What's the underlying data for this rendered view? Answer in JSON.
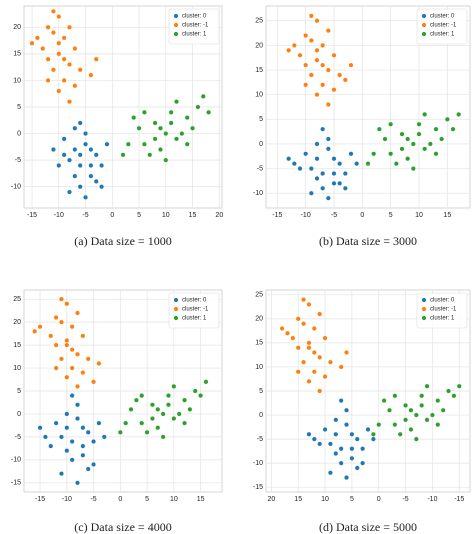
{
  "chart_data": [
    {
      "type": "scatter",
      "title": "(a) Data size = 1000",
      "legend": "upper right",
      "grid": true,
      "xlim": [
        -16.5,
        20.5
      ],
      "xticks": [
        -15,
        -10,
        -5,
        0,
        5,
        10,
        15,
        20
      ],
      "ylim": [
        -14,
        24
      ],
      "yticks": [
        -10,
        -5,
        0,
        5,
        10,
        15,
        20
      ],
      "series": [
        {
          "name": "cluster: 0",
          "color": "#1f77b4",
          "x": [
            -7,
            -6,
            -5,
            -8,
            -4,
            -3,
            -9,
            -6,
            -5,
            -2,
            -10,
            -7,
            -4,
            -3,
            -8,
            -5,
            -6,
            -1,
            -9,
            -7,
            -2,
            -11,
            -4,
            -6
          ],
          "y": [
            -3,
            -6,
            -2,
            -5,
            -8,
            -4,
            -1,
            -10,
            0,
            -6,
            -6,
            -8,
            -3,
            -9,
            -11,
            -12,
            2,
            -2,
            -4,
            1,
            -10,
            -3,
            -6,
            -4
          ]
        },
        {
          "name": "cluster: -1",
          "color": "#ff7f0e",
          "x": [
            -10,
            -9,
            -11,
            -8,
            -12,
            -10,
            -9,
            -7,
            -13,
            -11,
            -8,
            -10,
            -6,
            -12,
            -9,
            -14,
            -7,
            -11,
            -4,
            -15,
            -10,
            -8,
            -3,
            -12
          ],
          "y": [
            15,
            18,
            12,
            13,
            20,
            22,
            10,
            16,
            16,
            19,
            20,
            8,
            12,
            14,
            14,
            18,
            9,
            23,
            11,
            17,
            17,
            6,
            14,
            10
          ]
        },
        {
          "name": "cluster: 1",
          "color": "#2ca02c",
          "x": [
            10,
            8,
            12,
            6,
            14,
            9,
            11,
            5,
            16,
            13,
            7,
            3,
            15,
            10,
            17,
            4,
            12,
            8,
            18,
            2,
            11,
            6,
            14,
            9
          ],
          "y": [
            0,
            2,
            -1,
            -2,
            3,
            -3,
            4,
            1,
            5,
            0,
            -4,
            -2,
            1,
            -5,
            7,
            3,
            6,
            -1,
            4,
            -4,
            2,
            4,
            -2,
            1
          ]
        }
      ]
    },
    {
      "type": "scatter",
      "title": "(b) Data size = 3000",
      "legend": "upper right",
      "grid": true,
      "xlim": [
        -17,
        19
      ],
      "xticks": [
        -15,
        -10,
        -5,
        0,
        5,
        10,
        15
      ],
      "ylim": [
        -13,
        28
      ],
      "yticks": [
        -10,
        -5,
        0,
        5,
        10,
        15,
        20,
        25
      ],
      "series": [
        {
          "name": "cluster: 0",
          "color": "#1f77b4",
          "x": [
            -8,
            -7,
            -6,
            -9,
            -5,
            -4,
            -10,
            -7,
            -6,
            -3,
            -11,
            -8,
            -5,
            -4,
            -9,
            -6,
            -7,
            -2,
            -12,
            -8,
            -3,
            -13,
            -5,
            -1
          ],
          "y": [
            -3,
            -6,
            -1,
            -5,
            -8,
            -4,
            -2,
            -9,
            1,
            -6,
            -5,
            -7,
            -3,
            -8,
            -10,
            -11,
            3,
            -2,
            -4,
            0,
            -9,
            -3,
            -6,
            -4
          ]
        },
        {
          "name": "cluster: -1",
          "color": "#ff7f0e",
          "x": [
            -8,
            -7,
            -9,
            -6,
            -10,
            -8,
            -7,
            -5,
            -11,
            -9,
            -6,
            -8,
            -4,
            -10,
            -7,
            -12,
            -5,
            -9,
            -3,
            -13,
            -8,
            -6,
            -2,
            -10
          ],
          "y": [
            17,
            20,
            14,
            15,
            22,
            25,
            12,
            18,
            18,
            21,
            23,
            10,
            14,
            16,
            16,
            20,
            11,
            26,
            13,
            19,
            19,
            8,
            16,
            12
          ]
        },
        {
          "name": "cluster: 1",
          "color": "#2ca02c",
          "x": [
            9,
            7,
            11,
            5,
            13,
            8,
            10,
            4,
            15,
            12,
            6,
            2,
            14,
            9,
            17,
            3,
            11,
            7,
            16,
            1,
            10,
            5,
            13,
            8
          ],
          "y": [
            0,
            2,
            -1,
            -2,
            3,
            -3,
            4,
            1,
            5,
            0,
            -4,
            -2,
            1,
            -5,
            6,
            3,
            6,
            -1,
            3,
            -4,
            2,
            4,
            -2,
            1
          ]
        }
      ]
    },
    {
      "type": "scatter",
      "title": "(c) Data size = 4000",
      "legend": "upper right",
      "grid": true,
      "xlim": [
        -18,
        19
      ],
      "xticks": [
        -15,
        -10,
        -5,
        0,
        5,
        10,
        15
      ],
      "ylim": [
        -17,
        27
      ],
      "yticks": [
        -15,
        -10,
        -5,
        0,
        5,
        10,
        15,
        20,
        25
      ],
      "series": [
        {
          "name": "cluster: 0",
          "color": "#1f77b4",
          "x": [
            -10,
            -9,
            -8,
            -11,
            -7,
            -6,
            -12,
            -9,
            -8,
            -5,
            -13,
            -10,
            -7,
            -6,
            -11,
            -8,
            -9,
            -4,
            -14,
            -10,
            -5,
            -15,
            -7,
            -3
          ],
          "y": [
            -3,
            -6,
            -1,
            -5,
            -9,
            -4,
            -2,
            -10,
            2,
            -6,
            -7,
            -8,
            -3,
            -12,
            -13,
            -15,
            4,
            -2,
            -5,
            0,
            -11,
            -3,
            -7,
            -5
          ]
        },
        {
          "name": "cluster: -1",
          "color": "#ff7f0e",
          "x": [
            -10,
            -9,
            -11,
            -8,
            -12,
            -10,
            -9,
            -7,
            -13,
            -11,
            -8,
            -10,
            -6,
            -12,
            -9,
            -15,
            -7,
            -11,
            -4,
            -16,
            -10,
            -8,
            -5,
            -12
          ],
          "y": [
            15,
            19,
            12,
            13,
            21,
            24,
            10,
            17,
            17,
            20,
            22,
            8,
            12,
            15,
            14,
            19,
            9,
            25,
            11,
            18,
            16,
            6,
            7,
            10
          ]
        },
        {
          "name": "cluster: 1",
          "color": "#2ca02c",
          "x": [
            8,
            6,
            10,
            4,
            12,
            7,
            9,
            2,
            14,
            11,
            5,
            1,
            13,
            8,
            16,
            3,
            10,
            6,
            15,
            0,
            9,
            4,
            12,
            7
          ],
          "y": [
            0,
            2,
            -1,
            -2,
            3,
            -3,
            4,
            1,
            5,
            0,
            -4,
            -2,
            1,
            -5,
            7,
            3,
            6,
            -1,
            4,
            -4,
            2,
            4,
            -2,
            1
          ]
        }
      ]
    },
    {
      "type": "scatter",
      "title": "(d) Data size = 5000",
      "legend": "upper right",
      "grid": true,
      "xlim": [
        21,
        -17
      ],
      "xticks": [
        20,
        15,
        10,
        5,
        0,
        -5,
        -10,
        -15
      ],
      "ylim": [
        -16,
        26
      ],
      "yticks": [
        -15,
        -10,
        -5,
        0,
        5,
        10,
        15,
        20,
        25
      ],
      "series": [
        {
          "name": "cluster: 0",
          "color": "#1f77b4",
          "x": [
            8,
            7,
            6,
            9,
            5,
            4,
            10,
            7,
            6,
            3,
            11,
            8,
            5,
            4,
            9,
            6,
            7,
            2,
            12,
            8,
            3,
            13,
            5,
            1
          ],
          "y": [
            -4,
            -7,
            -2,
            -6,
            -9,
            -5,
            -3,
            -10,
            1,
            -7,
            -6,
            -8,
            -4,
            -11,
            -12,
            -13,
            3,
            -3,
            -5,
            -1,
            -10,
            -4,
            -7,
            -5
          ]
        },
        {
          "name": "cluster: -1",
          "color": "#ff7f0e",
          "x": [
            13,
            12,
            14,
            11,
            15,
            13,
            12,
            10,
            16,
            14,
            11,
            13,
            9,
            15,
            12,
            18,
            10,
            14,
            7,
            17,
            13,
            11,
            6,
            15
          ],
          "y": [
            14,
            18,
            11,
            12,
            20,
            23,
            9,
            16,
            16,
            19,
            21,
            7,
            11,
            14,
            13,
            18,
            8,
            24,
            10,
            17,
            15,
            5,
            13,
            9
          ]
        },
        {
          "name": "cluster: 1",
          "color": "#2ca02c",
          "x": [
            -7,
            -5,
            -9,
            -3,
            -11,
            -6,
            -8,
            -2,
            -13,
            -10,
            -4,
            0,
            -12,
            -7,
            -15,
            -1,
            -9,
            -5,
            -14,
            1,
            -8,
            -3,
            -11,
            -6
          ],
          "y": [
            0,
            2,
            -1,
            -2,
            3,
            -3,
            4,
            1,
            5,
            0,
            -4,
            -2,
            1,
            -5,
            6,
            3,
            6,
            -1,
            4,
            -4,
            2,
            4,
            -2,
            1
          ]
        }
      ]
    }
  ]
}
